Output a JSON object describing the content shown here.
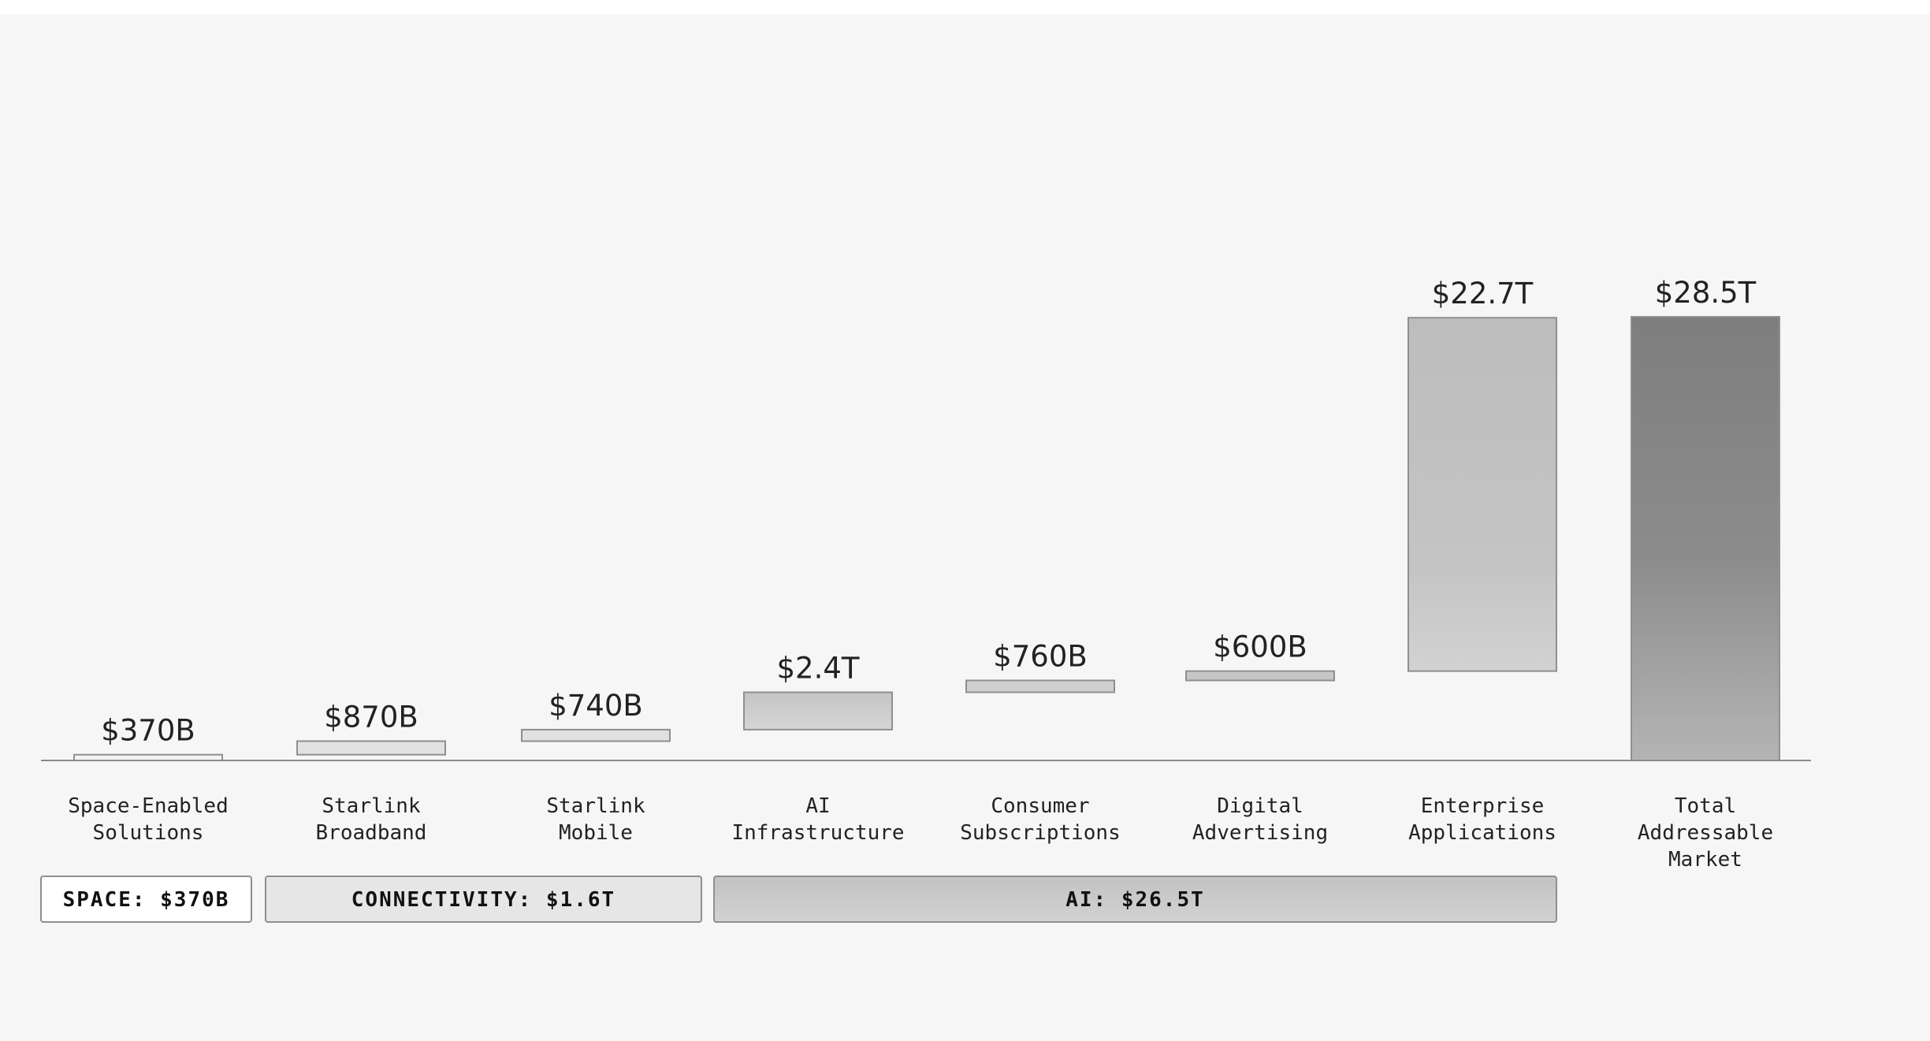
{
  "chart_data": {
    "type": "bar",
    "subtype": "waterfall",
    "unit": "$B",
    "categories": [
      "Space-Enabled Solutions",
      "Starlink Broadband",
      "Starlink Mobile",
      "AI Infrastructure",
      "Consumer Subscriptions",
      "Digital Advertising",
      "Enterprise Applications",
      "Total Addressable Market"
    ],
    "category_lines": [
      [
        "Space-Enabled",
        "Solutions"
      ],
      [
        "Starlink",
        "Broadband"
      ],
      [
        "Starlink",
        "Mobile"
      ],
      [
        "AI",
        "Infrastructure"
      ],
      [
        "Consumer",
        "Subscriptions"
      ],
      [
        "Digital",
        "Advertising"
      ],
      [
        "Enterprise",
        "Applications"
      ],
      [
        "Total",
        "Addressable",
        "Market"
      ]
    ],
    "values": [
      370,
      870,
      740,
      2400,
      760,
      600,
      22700,
      28500
    ],
    "value_labels": [
      "$370B",
      "$870B",
      "$740B",
      "$2.4T",
      "$760B",
      "$600B",
      "$22.7T",
      "$28.5T"
    ],
    "is_total": [
      false,
      false,
      false,
      false,
      false,
      false,
      false,
      true
    ],
    "fills": [
      "#f4f4f4",
      "#e2e2e2",
      "#e0e0e0",
      "#cccccc",
      "#cfcfcf",
      "#c6c6c6",
      "#c2c2c2",
      "#868686"
    ],
    "groups": [
      {
        "label": "SPACE: $370B",
        "from": 0,
        "to": 0,
        "fill": "#ffffff"
      },
      {
        "label": "CONNECTIVITY: $1.6T",
        "from": 1,
        "to": 2,
        "fill": "#e6e6e6"
      },
      {
        "label": "AI: $26.5T",
        "from": 3,
        "to": 6,
        "fill": "#cbcbcb"
      }
    ],
    "title": "",
    "xlabel": "",
    "ylabel": "",
    "ylim": [
      0,
      28500
    ],
    "grid": false,
    "legend": "none"
  }
}
